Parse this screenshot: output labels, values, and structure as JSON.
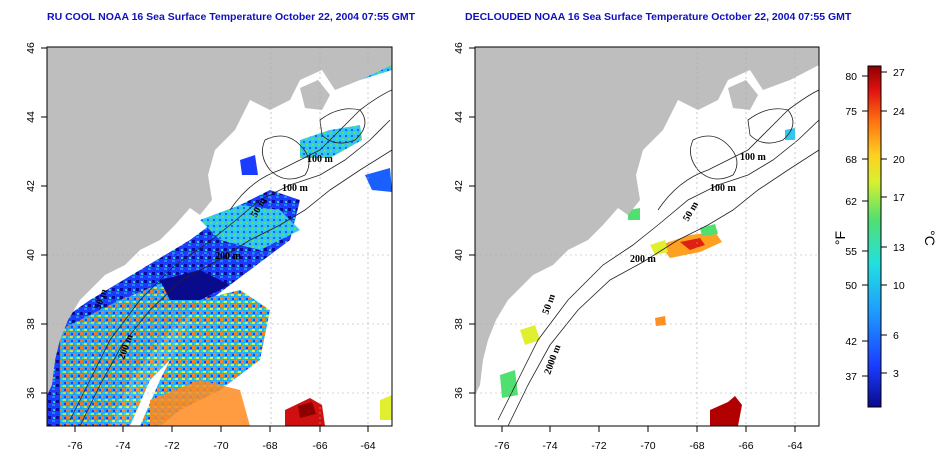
{
  "left_panel": {
    "title": "RU COOL NOAA 16 Sea Surface Temperature October 22, 2004 07:55 GMT",
    "contour_labels": [
      "100 m",
      "100 m",
      "50 m",
      "200 m",
      "50 m",
      "200 m"
    ]
  },
  "right_panel": {
    "title": "DECLOUDED NOAA 16 Sea Surface Temperature October 22, 2004 07:55 GMT",
    "contour_labels": [
      "100 m",
      "100 m",
      "50 m",
      "200 m",
      "50 m",
      "2000 m"
    ]
  },
  "axes": {
    "x_ticks": [
      "-76",
      "-74",
      "-72",
      "-70",
      "-68",
      "-66",
      "-64"
    ],
    "y_ticks": [
      "36",
      "38",
      "40",
      "42",
      "44",
      "46"
    ]
  },
  "colorbar": {
    "fahrenheit_ticks": [
      "80",
      "75",
      "68",
      "62",
      "55",
      "50",
      "42",
      "37"
    ],
    "celsius_ticks": [
      "27",
      "24",
      "20",
      "17",
      "13",
      "10",
      "6",
      "3"
    ],
    "fahrenheit_unit": "°F",
    "celsius_unit": "°C"
  },
  "colors": {
    "land": "#bebebe",
    "ocean_clear": "#ffffff",
    "title": "#1010c0",
    "grid": "#aaaaaa"
  }
}
